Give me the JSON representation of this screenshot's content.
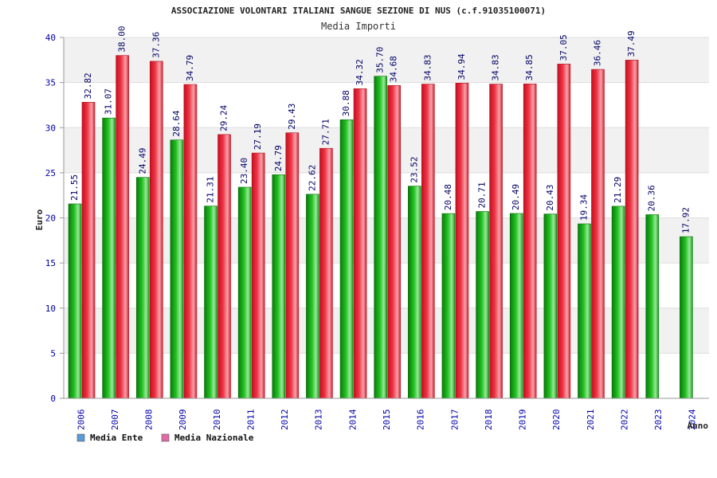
{
  "chart_data": {
    "type": "bar",
    "title": "ASSOCIAZIONE VOLONTARI ITALIANI SANGUE SEZIONE DI NUS (c.f.91035100071)",
    "subtitle": "Media Importi",
    "xlabel": "Anno",
    "ylabel": "Euro",
    "ylim": [
      0,
      40
    ],
    "yticks": [
      "0",
      "5",
      "10",
      "15",
      "20",
      "25",
      "30",
      "35",
      "40"
    ],
    "grid": true,
    "legend_position": "bottom-left",
    "categories": [
      "2006",
      "2007",
      "2008",
      "2009",
      "2010",
      "2011",
      "2012",
      "2013",
      "2014",
      "2015",
      "2016",
      "2017",
      "2018",
      "2019",
      "2020",
      "2021",
      "2022",
      "2023",
      "2024"
    ],
    "series": [
      {
        "name": "Media Ente",
        "color": "#22aa22",
        "legend_color": "#5b9bd5",
        "values": [
          21.55,
          31.07,
          24.49,
          28.64,
          21.31,
          23.4,
          24.79,
          22.62,
          30.88,
          35.7,
          23.52,
          20.48,
          20.71,
          20.49,
          20.43,
          19.34,
          21.29,
          20.36,
          17.92
        ],
        "labels": [
          "21.55",
          "31.07",
          "24.49",
          "28.64",
          "21.31",
          "23.40",
          "24.79",
          "22.62",
          "30.88",
          "35.70",
          "23.52",
          "20.48",
          "20.71",
          "20.49",
          "20.43",
          "19.34",
          "21.29",
          "20.36",
          "17.92"
        ]
      },
      {
        "name": "Media Nazionale",
        "color": "#e82a3a",
        "legend_color": "#e06aa8",
        "values": [
          32.82,
          38.0,
          37.36,
          34.79,
          29.24,
          27.19,
          29.43,
          27.71,
          34.32,
          34.68,
          34.83,
          34.94,
          34.83,
          34.85,
          37.05,
          36.46,
          37.49,
          null,
          null
        ],
        "labels": [
          "32.82",
          "38.00",
          "37.36",
          "34.79",
          "29.24",
          "27.19",
          "29.43",
          "27.71",
          "34.32",
          "34.68",
          "34.83",
          "34.94",
          "34.83",
          "34.85",
          "37.05",
          "36.46",
          "37.49",
          null,
          null
        ]
      }
    ]
  }
}
